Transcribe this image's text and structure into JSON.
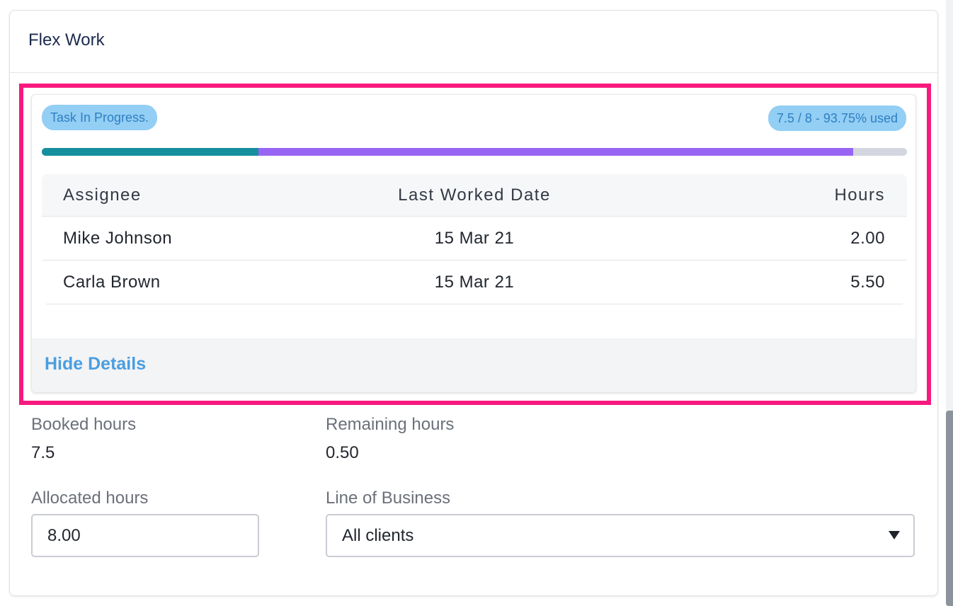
{
  "card": {
    "title": "Flex Work"
  },
  "task": {
    "status_badge": "Task In Progress.",
    "usage_badge": "7.5 / 8 - 93.75% used",
    "progress": {
      "used_fraction": 0.9375,
      "colors": [
        "#148f9e",
        "#9865f3",
        "#d3d6de"
      ]
    },
    "table": {
      "headers": [
        "Assignee",
        "Last Worked Date",
        "Hours"
      ],
      "rows": [
        {
          "assignee": "Mike Johnson",
          "date": "15 Mar 21",
          "hours": "2.00"
        },
        {
          "assignee": "Carla Brown",
          "date": "15 Mar 21",
          "hours": "5.50"
        }
      ]
    },
    "hide_link": "Hide Details"
  },
  "summary": {
    "booked_label": "Booked hours",
    "booked_value": "7.5",
    "remaining_label": "Remaining hours",
    "remaining_value": "0.50",
    "allocated_label": "Allocated hours",
    "allocated_value": "8.00",
    "lob_label": "Line of Business",
    "lob_value": "All clients"
  },
  "colors": {
    "highlight": "#f7197e",
    "link": "#4a9ee0",
    "badge_bg": "#93cef4",
    "badge_text": "#2f7fc3"
  }
}
